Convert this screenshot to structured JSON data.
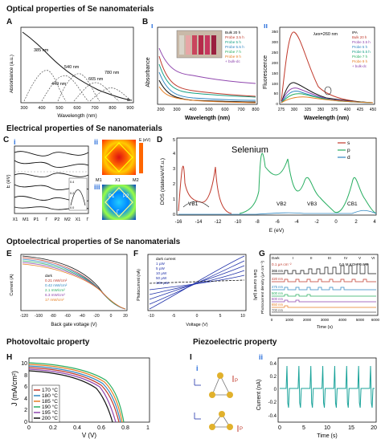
{
  "sections": {
    "optical": "Optical properties of Se nanomaterials",
    "electrical": "Electrical properties of Se nanomaterials",
    "optoelectrical": "Optoelectrical properties of Se nanomaterials",
    "photovoltaic": "Photovoltaic property",
    "piezoelectric": "Piezoelectric property"
  },
  "panels": {
    "A": "A",
    "B": "B",
    "C": "C",
    "D": "D",
    "E": "E",
    "F": "F",
    "G": "G",
    "H": "H",
    "I": "I"
  },
  "subpanels": {
    "i": "i",
    "ii": "ii",
    "iii": "iii"
  },
  "chart_data": [
    {
      "id": "A",
      "type": "line",
      "xlabel": "Wavelength (nm)",
      "ylabel": "Absorbance (a.u.)",
      "x_ticks": [
        "300",
        "400",
        "500",
        "600",
        "700",
        "800",
        "900"
      ],
      "xlim": [
        300,
        900
      ],
      "peak_labels": [
        "385 nm",
        "540 nm",
        "449 nm",
        "665 nm",
        "780 nm"
      ],
      "corner_label": "a"
    },
    {
      "id": "B-i",
      "type": "line",
      "xlabel": "Wavelength (nm)",
      "ylabel": "Absorbance",
      "x_ticks": [
        "200",
        "300",
        "400",
        "500",
        "600",
        "700",
        "800"
      ],
      "xlim": [
        200,
        800
      ],
      "legend": [
        "Bulk 20 h",
        "Probe 3.5 h",
        "Probe 5 h",
        "Probe 5.5 h",
        "Probe 7 h",
        "Probe 9 h",
        "+ bulk-dc"
      ],
      "legend_placement": "top-right"
    },
    {
      "id": "B-ii",
      "type": "line",
      "xlabel": "Wavelength (nm)",
      "ylabel": "Fluorescence",
      "annotation": "λex=260 nm",
      "x_ticks": [
        "275",
        "300",
        "325",
        "350",
        "375",
        "400",
        "425",
        "450"
      ],
      "y_ticks": [
        "0",
        "50",
        "100",
        "150",
        "200",
        "250",
        "300",
        "350"
      ],
      "xlim": [
        275,
        450
      ],
      "ylim": [
        0,
        380
      ],
      "legend": [
        "IPA",
        "Bulk 20 h",
        "Probe 3.5 h",
        "Probe 5 h",
        "Probe 5.5 h",
        "Probe 7 h",
        "Probe 9 h",
        "+ bulk-dc"
      ],
      "legend_placement": "top-right"
    },
    {
      "id": "C-i",
      "type": "line",
      "ylabel": "E (eV)",
      "x_ticks": [
        "X1",
        "M1",
        "P1",
        "Γ",
        "P2",
        "M2",
        "X1",
        "Γ"
      ],
      "y_ticks": [
        "0.0",
        "0.2",
        "0.4"
      ]
    },
    {
      "id": "C-ii",
      "type": "heatmap",
      "label": "E (eV)",
      "corner_labels": [
        "M1",
        "X1",
        "M2"
      ]
    },
    {
      "id": "C-iii",
      "type": "heatmap",
      "region_labels": [
        "P1",
        "P2",
        "Γ"
      ]
    },
    {
      "id": "D",
      "type": "line",
      "title": "Selenium",
      "xlabel": "E (eV)",
      "ylabel": "DOS (states/eV/f.u.)",
      "x_ticks": [
        "-16",
        "-14",
        "-12",
        "-10",
        "-8",
        "-6",
        "-4",
        "-2",
        "0",
        "2",
        "4"
      ],
      "y_ticks": [
        "0",
        "1",
        "2",
        "3",
        "4",
        "5"
      ],
      "xlim": [
        -16,
        4
      ],
      "ylim": [
        0,
        5
      ],
      "legend": [
        "s",
        "p",
        "d"
      ],
      "band_labels": [
        "VB1",
        "VB2",
        "VB3",
        "CB1"
      ]
    },
    {
      "id": "E",
      "type": "line",
      "xlabel": "Back gate voltage (V)",
      "ylabel": "Current (A)",
      "x_ticks": [
        "-120",
        "-100",
        "-80",
        "-60",
        "-40",
        "-20",
        "0",
        "20"
      ],
      "xlim": [
        -120,
        20
      ],
      "legend": [
        "dark",
        "0.21 mW/cm²",
        "0.42 mW/cm²",
        "2.1 mW/cm²",
        "6.3 mW/cm²",
        "17 mW/cm²"
      ]
    },
    {
      "id": "F",
      "type": "line",
      "xlabel": "Voltage (V)",
      "ylabel": "Photocurrent (nA)",
      "ylabel2": "Dark current (pA)",
      "x_ticks": [
        "-10",
        "-5",
        "0",
        "5",
        "10"
      ],
      "xlim": [
        -10,
        10
      ],
      "legend": [
        "dark current",
        "1 μW",
        "5 μW",
        "10 μW",
        "50 μW",
        "100 μW"
      ]
    },
    {
      "id": "G",
      "type": "line",
      "xlabel": "Time (s)",
      "ylabel": "Photocurrent density (μA cm⁻²)",
      "x_ticks": [
        "0",
        "1000",
        "2000",
        "3000",
        "4000",
        "5000",
        "6000"
      ],
      "xlim": [
        0,
        6000
      ],
      "scale_label": "0.1 μA cm⁻²",
      "stage_labels": [
        "Dark",
        "I",
        "II",
        "III",
        "IV",
        "V",
        "VI"
      ],
      "conditions": "0.5 M KOH, 0.6 V",
      "series_labels": [
        "365 nm",
        "420 nm",
        "475 nm",
        "500 nm",
        "600 nm",
        "650 nm",
        "700 nm"
      ]
    },
    {
      "id": "H",
      "type": "line",
      "xlabel": "V (V)",
      "ylabel": "J (mA/cm²)",
      "x_ticks": [
        "0",
        "0.2",
        "0.4",
        "0.6",
        "0.8",
        "1"
      ],
      "y_ticks": [
        "0",
        "2",
        "4",
        "6",
        "8",
        "10"
      ],
      "xlim": [
        0,
        1
      ],
      "ylim": [
        0,
        11
      ],
      "series": [
        {
          "name": "170 °C",
          "color": "#c0392b"
        },
        {
          "name": "180 °C",
          "color": "#2e86c1"
        },
        {
          "name": "185 °C",
          "color": "#e67e22"
        },
        {
          "name": "190 °C",
          "color": "#27ae60"
        },
        {
          "name": "195 °C",
          "color": "#8e44ad"
        },
        {
          "name": "200 °C",
          "color": "#111111"
        }
      ]
    },
    {
      "id": "I-ii",
      "type": "line",
      "xlabel": "Time (s)",
      "ylabel": "Current (nA)",
      "x_ticks": [
        "0",
        "5",
        "10",
        "15",
        "20"
      ],
      "y_ticks": [
        "-0.4",
        "-0.2",
        "0",
        "0.2",
        "0.4"
      ],
      "xlim": [
        0,
        20
      ],
      "ylim": [
        -0.45,
        0.45
      ]
    }
  ],
  "structure_labels": {
    "I-i": [
      "P",
      "P"
    ]
  }
}
